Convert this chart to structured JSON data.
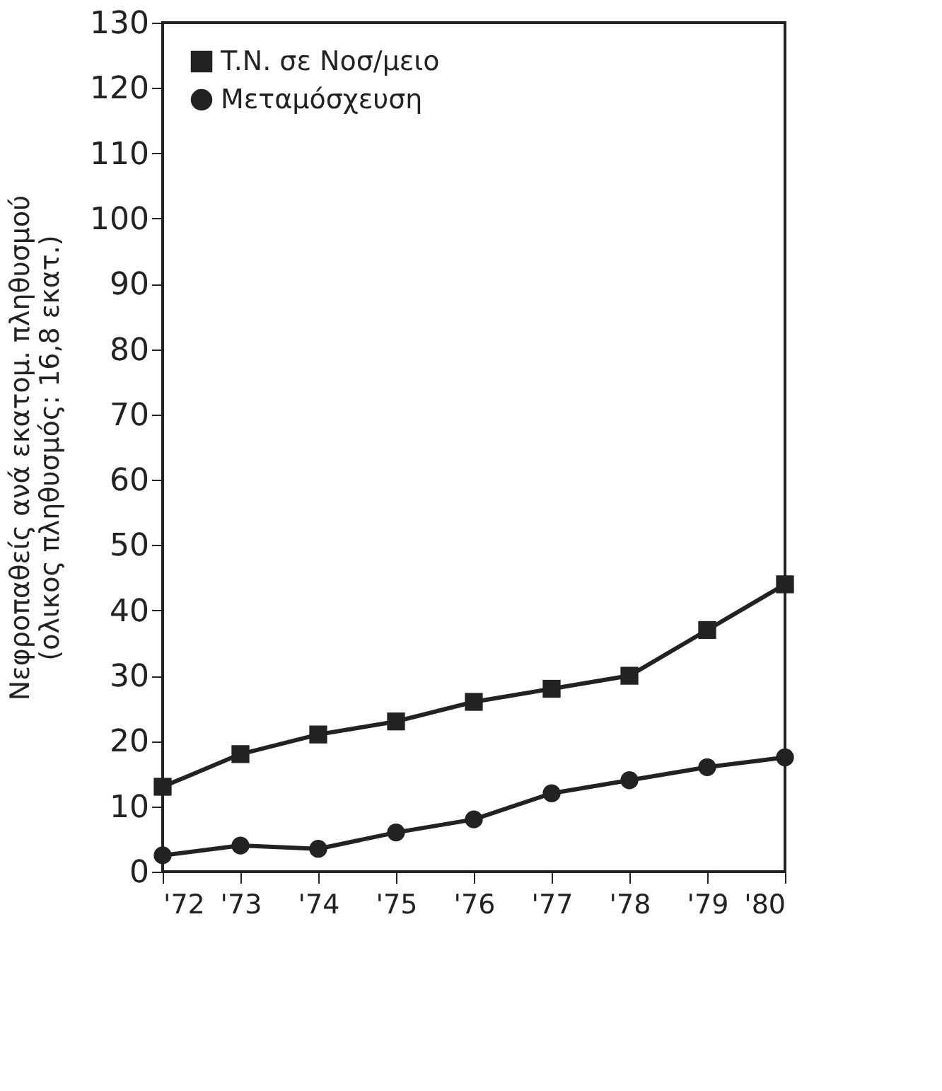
{
  "chart_data": {
    "type": "line",
    "ylabel": "Νεφροπαθείς ανά εκατομ. πληθυσμού\n(ολικος πληθυσμός: 16,8 εκατ.)",
    "categories": [
      "'72",
      "'73",
      "'74",
      "'75",
      "'76",
      "'77",
      "'78",
      "'79",
      "'80"
    ],
    "series": [
      {
        "name": "T.N. σε Νοσ/μειο",
        "color": "#222222",
        "marker": "square",
        "values": [
          13,
          18,
          21,
          23,
          26,
          28,
          30,
          37,
          44
        ]
      },
      {
        "name": "Μεταμόσχευση",
        "color": "#222222",
        "marker": "circle",
        "values": [
          2.5,
          4,
          3.5,
          6,
          8,
          12,
          14,
          16,
          17.5
        ]
      }
    ],
    "ylim": [
      0,
      130
    ],
    "yticks": [
      0,
      10,
      20,
      30,
      40,
      50,
      60,
      70,
      80,
      90,
      100,
      110,
      120,
      130
    ],
    "grid": false,
    "legend": "top left",
    "line_style": "solid"
  }
}
